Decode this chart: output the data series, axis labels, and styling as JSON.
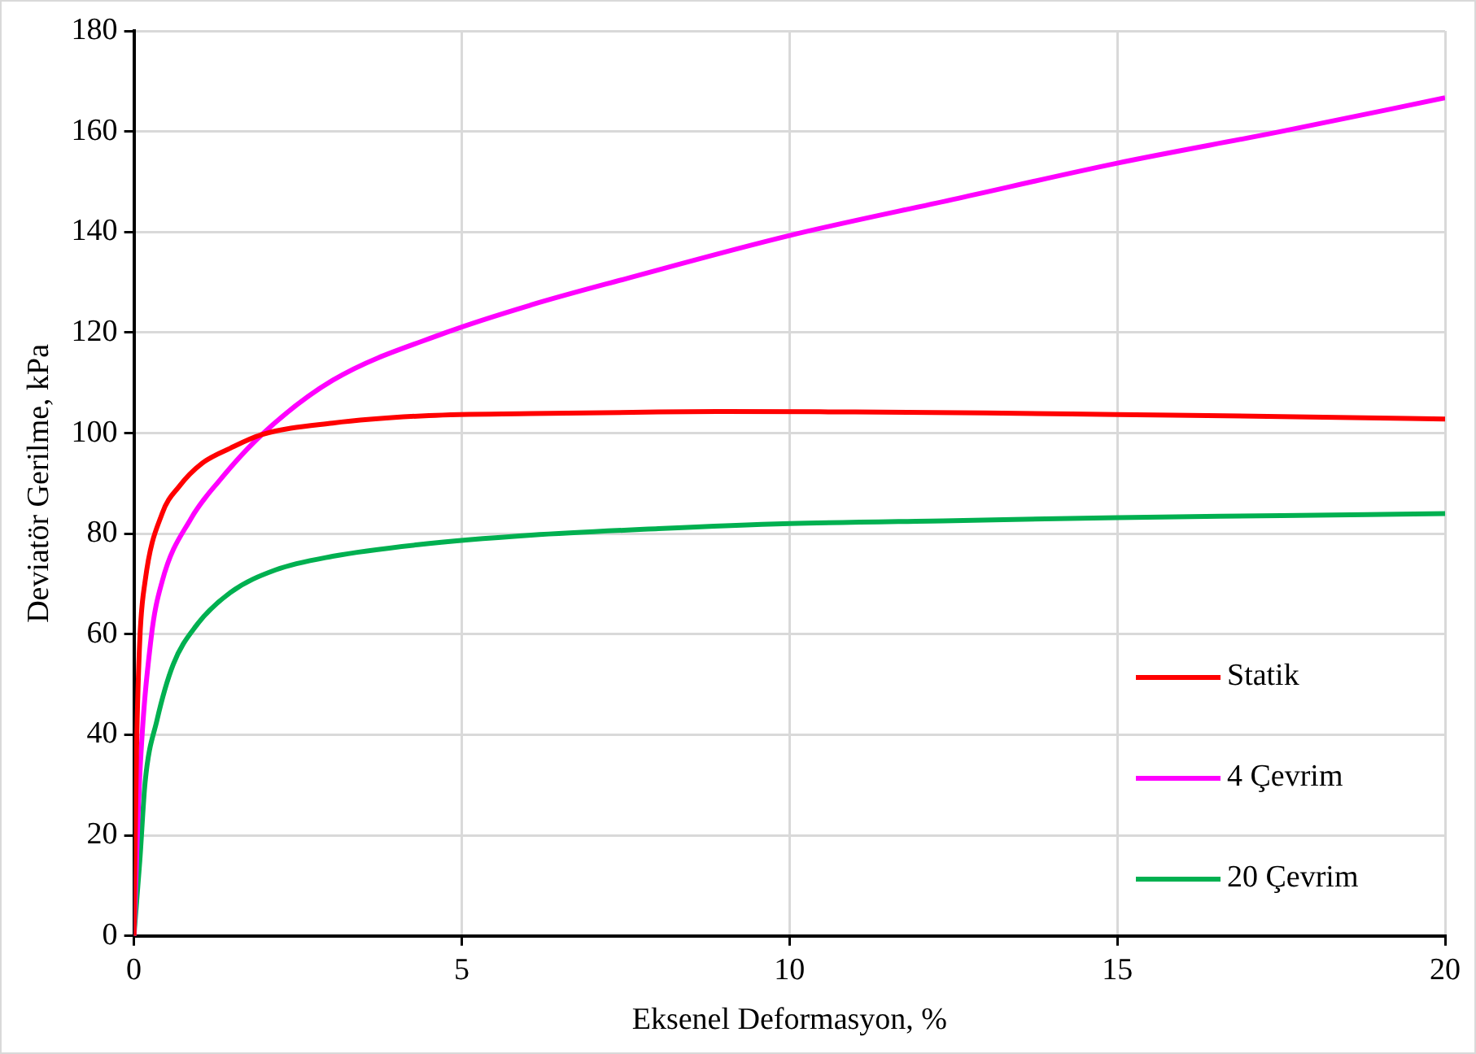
{
  "chart_data": {
    "type": "line",
    "xlabel": "Eksenel Deformasyon, %",
    "ylabel": "Deviatör Gerilme, kPa",
    "xlim": [
      0,
      20
    ],
    "xticks": [
      0,
      5,
      10,
      15,
      20
    ],
    "ylim": [
      0,
      180
    ],
    "yticks": [
      0,
      20,
      40,
      60,
      80,
      100,
      120,
      140,
      160,
      180
    ],
    "grid": true,
    "legend": "bottom right",
    "marker": "none",
    "line_style": "solid",
    "series": [
      {
        "name": "Statik",
        "color": "#ff0000",
        "x": [
          0,
          0.04,
          0.09,
          0.17,
          0.43,
          0.69,
          1.04,
          1.47,
          1.95,
          3.03,
          4.5,
          6.06,
          8,
          9,
          11,
          13,
          15,
          17.5,
          20
        ],
        "values": [
          0,
          37,
          59,
          70.5,
          84,
          89.4,
          94,
          97,
          99.7,
          102,
          103.5,
          103.9,
          104.2,
          104.3,
          104.2,
          104,
          103.7,
          103.3,
          102.8
        ]
      },
      {
        "name": "4 Çevrim",
        "color": "#ff00ff",
        "x": [
          0,
          0.09,
          0.26,
          0.43,
          0.87,
          1.3,
          1.95,
          3.03,
          4.76,
          6.06,
          7.5,
          10,
          12.5,
          15,
          17.5,
          20
        ],
        "values": [
          0,
          32,
          59,
          70.5,
          83,
          90.5,
          99.7,
          110.5,
          120,
          125.5,
          130.7,
          139.3,
          146.5,
          153.7,
          160,
          166.7
        ]
      },
      {
        "name": "20 Çevrim",
        "color": "#00b050",
        "x": [
          0,
          0.09,
          0.17,
          0.35,
          0.6,
          0.95,
          1.47,
          2.16,
          3.03,
          4.33,
          6.06,
          8,
          10,
          12.5,
          15,
          17.5,
          20
        ],
        "values": [
          0,
          15,
          30.5,
          42.8,
          54,
          61.7,
          68.3,
          72.8,
          75.5,
          77.8,
          79.7,
          81,
          82,
          82.6,
          83.2,
          83.6,
          84
        ]
      }
    ]
  }
}
